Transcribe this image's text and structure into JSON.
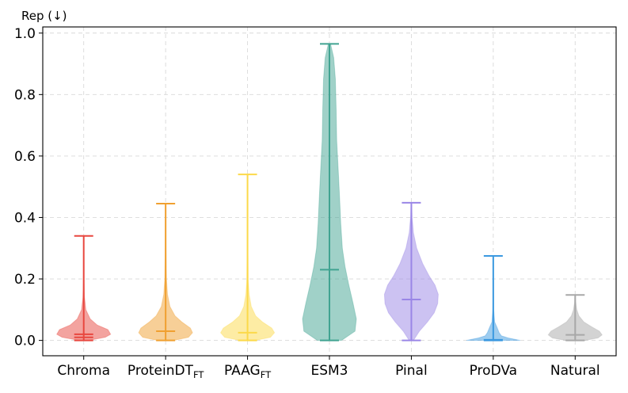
{
  "chart_data": {
    "type": "violin",
    "ylabel": "Rep (↓)",
    "ylim": [
      -0.05,
      1.02
    ],
    "yticks": [
      0.0,
      0.2,
      0.4,
      0.6,
      0.8,
      1.0
    ],
    "ytick_labels": [
      "0.0",
      "0.2",
      "0.4",
      "0.6",
      "0.8",
      "1.0"
    ],
    "grid": true,
    "series": [
      {
        "label": "Chroma",
        "label_sub": "",
        "color": "#e8473f",
        "min": 0.0,
        "max": 0.34,
        "median": 0.02,
        "mean": 0.01,
        "density": [
          [
            0.0,
            0.16
          ],
          [
            0.01,
            0.8
          ],
          [
            0.02,
            1.0
          ],
          [
            0.035,
            0.9
          ],
          [
            0.05,
            0.5
          ],
          [
            0.07,
            0.24
          ],
          [
            0.1,
            0.08
          ],
          [
            0.14,
            0.03
          ],
          [
            0.2,
            0.01
          ],
          [
            0.34,
            0.005
          ]
        ]
      },
      {
        "label": "ProteinDT",
        "label_sub": "FT",
        "color": "#f0a030",
        "min": 0.0,
        "max": 0.445,
        "median": 0.03,
        "density": [
          [
            0.0,
            0.3
          ],
          [
            0.01,
            0.85
          ],
          [
            0.025,
            1.0
          ],
          [
            0.04,
            0.92
          ],
          [
            0.06,
            0.6
          ],
          [
            0.08,
            0.35
          ],
          [
            0.11,
            0.16
          ],
          [
            0.15,
            0.07
          ],
          [
            0.2,
            0.03
          ],
          [
            0.3,
            0.012
          ],
          [
            0.445,
            0.004
          ]
        ]
      },
      {
        "label": "PAAG",
        "label_sub": "FT",
        "color": "#fcd94a",
        "min": 0.0,
        "max": 0.54,
        "median": 0.025,
        "density": [
          [
            0.0,
            0.28
          ],
          [
            0.01,
            0.85
          ],
          [
            0.025,
            1.0
          ],
          [
            0.04,
            0.9
          ],
          [
            0.06,
            0.55
          ],
          [
            0.08,
            0.3
          ],
          [
            0.11,
            0.14
          ],
          [
            0.15,
            0.06
          ],
          [
            0.2,
            0.025
          ],
          [
            0.3,
            0.01
          ],
          [
            0.54,
            0.003
          ]
        ]
      },
      {
        "label": "ESM3",
        "label_sub": "",
        "color": "#41a391",
        "min": 0.0,
        "max": 0.965,
        "median": 0.23,
        "density": [
          [
            0.0,
            0.45
          ],
          [
            0.03,
            0.95
          ],
          [
            0.07,
            1.0
          ],
          [
            0.12,
            0.88
          ],
          [
            0.18,
            0.72
          ],
          [
            0.24,
            0.58
          ],
          [
            0.3,
            0.48
          ],
          [
            0.38,
            0.42
          ],
          [
            0.46,
            0.38
          ],
          [
            0.55,
            0.33
          ],
          [
            0.65,
            0.27
          ],
          [
            0.75,
            0.25
          ],
          [
            0.85,
            0.22
          ],
          [
            0.92,
            0.16
          ],
          [
            0.965,
            0.04
          ]
        ]
      },
      {
        "label": "Pinal",
        "label_sub": "",
        "color": "#9a86e6",
        "min": 0.0,
        "max": 0.448,
        "median": 0.133,
        "density": [
          [
            0.0,
            0.08
          ],
          [
            0.03,
            0.3
          ],
          [
            0.06,
            0.6
          ],
          [
            0.09,
            0.85
          ],
          [
            0.12,
            0.98
          ],
          [
            0.15,
            1.0
          ],
          [
            0.18,
            0.88
          ],
          [
            0.21,
            0.66
          ],
          [
            0.25,
            0.42
          ],
          [
            0.3,
            0.2
          ],
          [
            0.35,
            0.08
          ],
          [
            0.4,
            0.03
          ],
          [
            0.448,
            0.008
          ]
        ]
      },
      {
        "label": "ProDVa",
        "label_sub": "",
        "color": "#3b99e0",
        "min": 0.0,
        "max": 0.275,
        "median": 0.002,
        "density": [
          [
            0.0,
            1.0
          ],
          [
            0.008,
            0.55
          ],
          [
            0.015,
            0.3
          ],
          [
            0.025,
            0.22
          ],
          [
            0.04,
            0.15
          ],
          [
            0.06,
            0.05
          ],
          [
            0.1,
            0.015
          ],
          [
            0.15,
            0.006
          ],
          [
            0.275,
            0.002
          ]
        ]
      },
      {
        "label": "Natural",
        "label_sub": "",
        "color": "#a8a8a8",
        "min": 0.0,
        "max": 0.148,
        "median": 0.018,
        "density": [
          [
            0.0,
            0.35
          ],
          [
            0.008,
            0.85
          ],
          [
            0.018,
            1.0
          ],
          [
            0.03,
            0.9
          ],
          [
            0.045,
            0.6
          ],
          [
            0.06,
            0.32
          ],
          [
            0.08,
            0.14
          ],
          [
            0.1,
            0.06
          ],
          [
            0.125,
            0.02
          ],
          [
            0.148,
            0.005
          ]
        ]
      }
    ]
  }
}
